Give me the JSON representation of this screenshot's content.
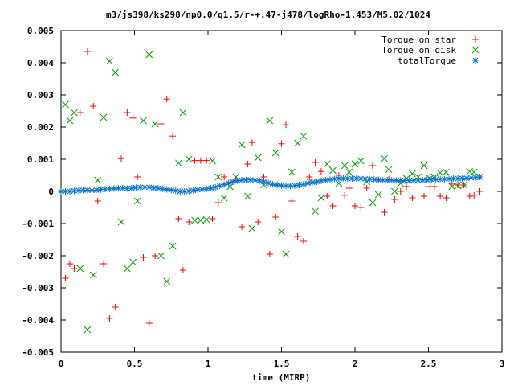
{
  "chart_data": {
    "type": "scatter",
    "title": "m3/js398/ks298/np0.0/q1.5/r-+.47-j478/logRho-1.453/M5.02/1024",
    "xlabel": "time (MIRP)",
    "ylabel": "",
    "xlim": [
      0,
      3
    ],
    "ylim": [
      -0.005,
      0.005
    ],
    "xticks": [
      0,
      0.5,
      1,
      1.5,
      2,
      2.5,
      3
    ],
    "xtick_labels": [
      "0",
      "0.5",
      "1",
      "1.5",
      "2",
      "2.5",
      "3"
    ],
    "yticks": [
      -0.005,
      -0.004,
      -0.003,
      -0.002,
      -0.001,
      0,
      0.001,
      0.002,
      0.003,
      0.004,
      0.005
    ],
    "ytick_labels": [
      "-0.005",
      "-0.004",
      "-0.003",
      "-0.002",
      "-0.001",
      "0",
      "0.001",
      "0.002",
      "0.003",
      "0.004",
      "0.005"
    ],
    "grid": false,
    "legend_position": "top-right",
    "series": [
      {
        "name": "Torque on star",
        "marker": "plus",
        "color": "#ff0000",
        "points": [
          [
            0.03,
            -0.0027
          ],
          [
            0.06,
            -0.00225
          ],
          [
            0.09,
            -0.0024
          ],
          [
            0.13,
            0.00245
          ],
          [
            0.18,
            0.00435
          ],
          [
            0.22,
            0.00265
          ],
          [
            0.25,
            -0.0003
          ],
          [
            0.29,
            -0.00225
          ],
          [
            0.33,
            -0.00395
          ],
          [
            0.37,
            -0.0036
          ],
          [
            0.41,
            0.00102
          ],
          [
            0.45,
            0.00245
          ],
          [
            0.49,
            0.00228
          ],
          [
            0.52,
            0.00045
          ],
          [
            0.56,
            -0.00205
          ],
          [
            0.6,
            -0.0041
          ],
          [
            0.64,
            -0.002
          ],
          [
            0.68,
            0.0021
          ],
          [
            0.72,
            0.00287
          ],
          [
            0.76,
            0.00172
          ],
          [
            0.8,
            -0.00085
          ],
          [
            0.83,
            -0.00245
          ],
          [
            0.87,
            -0.00095
          ],
          [
            0.91,
            0.00096
          ],
          [
            0.95,
            0.00096
          ],
          [
            0.99,
            0.00096
          ],
          [
            1.03,
            -0.00085
          ],
          [
            1.07,
            -0.00035
          ],
          [
            1.11,
            0.00045
          ],
          [
            1.15,
            0.00028
          ],
          [
            1.19,
            0.00035
          ],
          [
            1.23,
            -0.0011
          ],
          [
            1.27,
            0.00085
          ],
          [
            1.3,
            0.00152
          ],
          [
            1.34,
            -0.00095
          ],
          [
            1.38,
            0.00045
          ],
          [
            1.42,
            -0.00195
          ],
          [
            1.46,
            -0.0008
          ],
          [
            1.5,
            0.00148
          ],
          [
            1.53,
            0.00207
          ],
          [
            1.57,
            -0.0003
          ],
          [
            1.61,
            -0.0014
          ],
          [
            1.65,
            -0.00155
          ],
          [
            1.69,
            0.00045
          ],
          [
            1.73,
            0.0009
          ],
          [
            1.77,
            0.00062
          ],
          [
            1.81,
            -0.00015
          ],
          [
            1.85,
            -0.00045
          ],
          [
            1.89,
            0.0005
          ],
          [
            1.93,
            -0.00012
          ],
          [
            1.96,
            0.0001
          ],
          [
            2.0,
            -0.00045
          ],
          [
            2.04,
            -0.0005
          ],
          [
            2.08,
            0.0001
          ],
          [
            2.12,
            0.0008
          ],
          [
            2.16,
            0.00035
          ],
          [
            2.2,
            -0.00065
          ],
          [
            2.23,
            0.00038
          ],
          [
            2.27,
            -0.00025
          ],
          [
            2.31,
            0.0
          ],
          [
            2.35,
            0.00015
          ],
          [
            2.39,
            -0.0002
          ],
          [
            2.43,
            0.00035
          ],
          [
            2.47,
            -0.00015
          ],
          [
            2.51,
            0.00015
          ],
          [
            2.54,
            0.00015
          ],
          [
            2.58,
            -0.00015
          ],
          [
            2.62,
            -0.0002
          ],
          [
            2.66,
            0.00025
          ],
          [
            2.7,
            0.0002
          ],
          [
            2.74,
            0.0002
          ],
          [
            2.78,
            -0.00015
          ],
          [
            2.81,
            -0.00012
          ],
          [
            2.85,
            0.0
          ]
        ]
      },
      {
        "name": "Torque on disk",
        "marker": "cross",
        "color": "#00a000",
        "points": [
          [
            0.03,
            0.0027
          ],
          [
            0.06,
            0.0022
          ],
          [
            0.09,
            0.00245
          ],
          [
            0.13,
            -0.0024
          ],
          [
            0.18,
            -0.0043
          ],
          [
            0.22,
            -0.0026
          ],
          [
            0.25,
            0.00035
          ],
          [
            0.29,
            0.0023
          ],
          [
            0.33,
            0.00405
          ],
          [
            0.37,
            0.0037
          ],
          [
            0.41,
            -0.00095
          ],
          [
            0.45,
            -0.0024
          ],
          [
            0.49,
            -0.0022
          ],
          [
            0.52,
            -0.0003
          ],
          [
            0.56,
            0.0022
          ],
          [
            0.6,
            0.00425
          ],
          [
            0.64,
            0.0021
          ],
          [
            0.68,
            -0.002
          ],
          [
            0.72,
            -0.0028
          ],
          [
            0.76,
            -0.0017
          ],
          [
            0.8,
            0.00088
          ],
          [
            0.83,
            0.00245
          ],
          [
            0.87,
            0.001
          ],
          [
            0.91,
            -0.0009
          ],
          [
            0.95,
            -0.0009
          ],
          [
            0.99,
            -0.00088
          ],
          [
            1.03,
            0.00095
          ],
          [
            1.07,
            0.00045
          ],
          [
            1.11,
            -0.0002
          ],
          [
            1.15,
            0.00015
          ],
          [
            1.19,
            0.00045
          ],
          [
            1.23,
            0.00145
          ],
          [
            1.27,
            -0.00015
          ],
          [
            1.3,
            -0.00115
          ],
          [
            1.34,
            0.00105
          ],
          [
            1.38,
            0.0002
          ],
          [
            1.42,
            0.0022
          ],
          [
            1.46,
            0.0012
          ],
          [
            1.5,
            -0.00125
          ],
          [
            1.53,
            -0.00195
          ],
          [
            1.57,
            0.0006
          ],
          [
            1.61,
            0.0015
          ],
          [
            1.65,
            0.00172
          ],
          [
            1.69,
            0.0003
          ],
          [
            1.73,
            -0.00062
          ],
          [
            1.77,
            -0.0002
          ],
          [
            1.81,
            0.00085
          ],
          [
            1.85,
            0.00065
          ],
          [
            1.89,
            0.00025
          ],
          [
            1.93,
            0.0008
          ],
          [
            1.96,
            0.0006
          ],
          [
            2.0,
            0.00085
          ],
          [
            2.04,
            0.00095
          ],
          [
            2.08,
            0.0003
          ],
          [
            2.12,
            -0.00035
          ],
          [
            2.16,
            -0.0001
          ],
          [
            2.2,
            0.00102
          ],
          [
            2.23,
            0.00068
          ],
          [
            2.27,
            0.0
          ],
          [
            2.31,
            0.00025
          ],
          [
            2.35,
            0.0004
          ],
          [
            2.39,
            0.00055
          ],
          [
            2.43,
            0.00045
          ],
          [
            2.47,
            0.0008
          ],
          [
            2.51,
            0.0004
          ],
          [
            2.54,
            0.00045
          ],
          [
            2.58,
            0.00058
          ],
          [
            2.62,
            0.0006
          ],
          [
            2.66,
            0.00015
          ],
          [
            2.7,
            0.00018
          ],
          [
            2.74,
            0.0002
          ],
          [
            2.78,
            0.00062
          ],
          [
            2.81,
            0.0006
          ],
          [
            2.85,
            0.00045
          ]
        ]
      },
      {
        "name": "totalTorque",
        "marker": "star",
        "color": "#0070d0",
        "points": [
          [
            0.0,
            0.0
          ],
          [
            0.03,
            0.0
          ],
          [
            0.06,
            0.0
          ],
          [
            0.09,
            2e-05
          ],
          [
            0.12,
            3e-05
          ],
          [
            0.15,
            4e-05
          ],
          [
            0.18,
            4e-05
          ],
          [
            0.21,
            3e-05
          ],
          [
            0.24,
            4e-05
          ],
          [
            0.27,
            6e-05
          ],
          [
            0.3,
            7e-05
          ],
          [
            0.33,
            8e-05
          ],
          [
            0.36,
            9e-05
          ],
          [
            0.39,
            0.0001
          ],
          [
            0.42,
            0.0001
          ],
          [
            0.45,
            9e-05
          ],
          [
            0.48,
            0.0001
          ],
          [
            0.51,
            0.00012
          ],
          [
            0.54,
            0.00013
          ],
          [
            0.57,
            0.00013
          ],
          [
            0.6,
            0.00013
          ],
          [
            0.63,
            0.00011
          ],
          [
            0.66,
            0.0001
          ],
          [
            0.69,
            8e-05
          ],
          [
            0.72,
            6e-05
          ],
          [
            0.75,
            4e-05
          ],
          [
            0.78,
            2e-05
          ],
          [
            0.81,
            0.0
          ],
          [
            0.84,
            0.0
          ],
          [
            0.87,
            1e-05
          ],
          [
            0.9,
            3e-05
          ],
          [
            0.93,
            5e-05
          ],
          [
            0.96,
            6e-05
          ],
          [
            0.99,
            8e-05
          ],
          [
            1.02,
            0.0001
          ],
          [
            1.05,
            0.00013
          ],
          [
            1.08,
            0.00017
          ],
          [
            1.11,
            0.00021
          ],
          [
            1.14,
            0.00026
          ],
          [
            1.17,
            0.0003
          ],
          [
            1.2,
            0.00033
          ],
          [
            1.23,
            0.00035
          ],
          [
            1.26,
            0.00036
          ],
          [
            1.29,
            0.00036
          ],
          [
            1.32,
            0.00035
          ],
          [
            1.35,
            0.00033
          ],
          [
            1.38,
            0.0003
          ],
          [
            1.41,
            0.00026
          ],
          [
            1.44,
            0.00022
          ],
          [
            1.47,
            0.0002
          ],
          [
            1.5,
            0.00018
          ],
          [
            1.53,
            0.00017
          ],
          [
            1.56,
            0.00017
          ],
          [
            1.59,
            0.00018
          ],
          [
            1.62,
            0.0002
          ],
          [
            1.65,
            0.00022
          ],
          [
            1.68,
            0.00025
          ],
          [
            1.71,
            0.00028
          ],
          [
            1.74,
            0.0003
          ],
          [
            1.77,
            0.00033
          ],
          [
            1.8,
            0.00035
          ],
          [
            1.83,
            0.00037
          ],
          [
            1.86,
            0.00039
          ],
          [
            1.89,
            0.0004
          ],
          [
            1.92,
            0.0004
          ],
          [
            1.95,
            0.0004
          ],
          [
            1.98,
            0.0004
          ],
          [
            2.01,
            0.0004
          ],
          [
            2.04,
            0.0004
          ],
          [
            2.07,
            0.00039
          ],
          [
            2.1,
            0.00038
          ],
          [
            2.13,
            0.00037
          ],
          [
            2.16,
            0.00036
          ],
          [
            2.19,
            0.00035
          ],
          [
            2.22,
            0.00035
          ],
          [
            2.25,
            0.00035
          ],
          [
            2.28,
            0.00034
          ],
          [
            2.31,
            0.00034
          ],
          [
            2.34,
            0.00034
          ],
          [
            2.37,
            0.00034
          ],
          [
            2.4,
            0.00035
          ],
          [
            2.43,
            0.00035
          ],
          [
            2.46,
            0.00035
          ],
          [
            2.49,
            0.00036
          ],
          [
            2.52,
            0.00037
          ],
          [
            2.55,
            0.00037
          ],
          [
            2.58,
            0.00038
          ],
          [
            2.61,
            0.00038
          ],
          [
            2.64,
            0.00039
          ],
          [
            2.67,
            0.0004
          ],
          [
            2.7,
            0.0004
          ],
          [
            2.73,
            0.00041
          ],
          [
            2.76,
            0.00041
          ],
          [
            2.79,
            0.00042
          ],
          [
            2.82,
            0.00043
          ],
          [
            2.85,
            0.00045
          ]
        ]
      }
    ]
  }
}
